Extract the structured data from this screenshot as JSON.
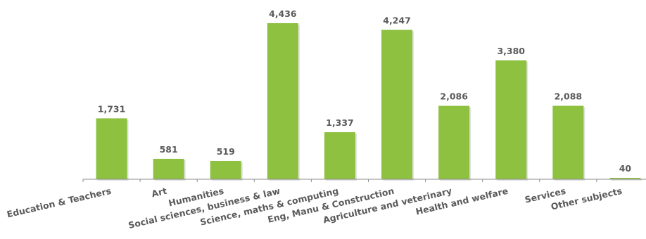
{
  "chart_data": {
    "type": "bar",
    "categories": [
      "Education & Teachers",
      "Art",
      "Humanities",
      "Social sciences, business & law",
      "Science, maths & computing",
      "Eng, Manu & Construction",
      "Agriculture and veterinary",
      "Health and welfare",
      "Services",
      "Other subjects"
    ],
    "values": [
      1731,
      581,
      519,
      4436,
      1337,
      4247,
      2086,
      3380,
      2088,
      40
    ],
    "value_labels": [
      "1,731",
      "581",
      "519",
      "4,436",
      "1,337",
      "4,247",
      "2,086",
      "3,380",
      "2,088",
      "40"
    ],
    "title": "",
    "xlabel": "",
    "ylabel": "",
    "ylim": [
      0,
      4436
    ],
    "grid": false,
    "legend": "none",
    "bar_color": "#8dc13f",
    "axis_color": "#8c8c8c",
    "label_color": "#5a5a5a"
  }
}
